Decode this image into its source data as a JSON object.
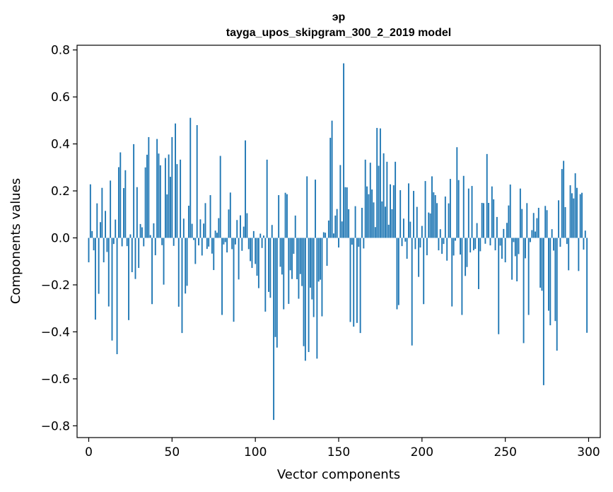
{
  "chart_data": {
    "type": "bar",
    "title": "эр",
    "subtitle": "tayga_upos_skipgram_300_2_2019 model",
    "xlabel": "Vector components",
    "ylabel": "Components values",
    "xlim": [
      -7,
      307
    ],
    "ylim": [
      -0.85,
      0.82
    ],
    "xticks": [
      0,
      50,
      100,
      150,
      200,
      250,
      300
    ],
    "xtick_labels": [
      "0",
      "50",
      "100",
      "150",
      "200",
      "250",
      "300"
    ],
    "yticks": [
      -0.8,
      -0.6,
      -0.4,
      -0.2,
      0.0,
      0.2,
      0.4,
      0.6,
      0.8
    ],
    "ytick_labels": [
      "−0.8",
      "−0.6",
      "−0.4",
      "−0.2",
      "0.0",
      "0.2",
      "0.4",
      "0.6",
      "0.8"
    ],
    "bar_color": "#1f77b4",
    "values": [
      -0.104,
      0.228,
      0.029,
      -0.053,
      -0.348,
      0.147,
      -0.238,
      0.067,
      0.213,
      -0.104,
      0.115,
      -0.06,
      -0.292,
      0.244,
      -0.437,
      -0.026,
      0.078,
      -0.495,
      0.301,
      0.364,
      -0.036,
      0.212,
      0.288,
      -0.035,
      -0.35,
      0.015,
      -0.146,
      0.399,
      -0.175,
      0.216,
      -0.128,
      0.059,
      0.045,
      -0.036,
      0.3,
      0.354,
      0.429,
      0.012,
      -0.282,
      0.062,
      -0.074,
      0.421,
      0.359,
      0.309,
      -0.031,
      -0.199,
      0.34,
      0.185,
      0.355,
      0.26,
      0.429,
      -0.034,
      0.487,
      0.314,
      -0.293,
      0.333,
      -0.405,
      0.082,
      -0.237,
      -0.204,
      0.137,
      0.511,
      0.06,
      -0.009,
      -0.111,
      0.48,
      -0.032,
      0.079,
      -0.075,
      0.061,
      0.148,
      -0.047,
      -0.037,
      0.182,
      -0.067,
      -0.137,
      0.031,
      0.022,
      0.084,
      0.349,
      -0.328,
      -0.028,
      -0.018,
      -0.062,
      0.121,
      0.193,
      -0.048,
      -0.357,
      -0.028,
      0.076,
      -0.177,
      0.096,
      -0.055,
      0.048,
      0.415,
      0.105,
      -0.048,
      -0.099,
      -0.128,
      0.029,
      -0.111,
      -0.161,
      -0.214,
      0.018,
      -0.043,
      0.01,
      -0.314,
      0.333,
      -0.23,
      -0.255,
      0.055,
      -0.775,
      -0.422,
      -0.467,
      0.182,
      -0.123,
      -0.156,
      -0.304,
      0.192,
      0.186,
      -0.281,
      -0.138,
      -0.175,
      -0.068,
      0.095,
      -0.176,
      -0.259,
      -0.154,
      -0.205,
      -0.461,
      -0.523,
      0.262,
      -0.486,
      -0.212,
      -0.262,
      -0.337,
      0.248,
      -0.514,
      -0.186,
      -0.178,
      -0.334,
      0.024,
      0.022,
      -0.119,
      0.074,
      0.426,
      0.499,
      0.019,
      0.095,
      0.123,
      -0.041,
      0.31,
      0.07,
      0.743,
      0.216,
      0.215,
      0.122,
      -0.358,
      -0.029,
      -0.378,
      0.135,
      -0.362,
      -0.038,
      -0.405,
      0.128,
      -0.045,
      0.333,
      0.219,
      0.186,
      0.32,
      0.206,
      0.151,
      0.046,
      0.468,
      0.307,
      0.466,
      0.155,
      0.36,
      0.133,
      0.324,
      0.056,
      0.228,
      0.122,
      0.224,
      0.324,
      -0.304,
      -0.286,
      0.203,
      -0.035,
      0.082,
      -0.016,
      -0.089,
      0.232,
      0.069,
      -0.458,
      0.2,
      -0.048,
      0.132,
      -0.166,
      -0.041,
      0.051,
      -0.282,
      0.242,
      -0.074,
      0.108,
      0.104,
      0.262,
      0.194,
      0.182,
      0.148,
      -0.053,
      0.037,
      -0.068,
      -0.026,
      0.176,
      -0.097,
      0.147,
      0.251,
      -0.292,
      -0.075,
      -0.012,
      0.386,
      0.246,
      -0.071,
      -0.328,
      0.264,
      -0.162,
      -0.124,
      0.21,
      -0.062,
      0.221,
      -0.053,
      -0.047,
      0.063,
      -0.218,
      -0.057,
      0.149,
      0.148,
      -0.025,
      0.357,
      0.149,
      -0.032,
      0.219,
      0.164,
      -0.053,
      0.089,
      -0.41,
      -0.033,
      -0.089,
      0.038,
      -0.104,
      0.064,
      0.138,
      0.227,
      -0.178,
      -0.018,
      -0.078,
      -0.185,
      -0.069,
      0.21,
      0.123,
      -0.448,
      -0.087,
      0.148,
      -0.328,
      -0.018,
      0.033,
      0.106,
      0.027,
      0.084,
      0.128,
      -0.212,
      -0.225,
      -0.627,
      0.136,
      0.118,
      -0.31,
      -0.372,
      0.037,
      -0.054,
      -0.354,
      -0.48,
      0.16,
      -0.038,
      0.293,
      0.328,
      0.131,
      -0.026,
      -0.138,
      0.224,
      0.19,
      0.168,
      0.275,
      0.213,
      -0.141,
      0.186,
      0.192,
      -0.05,
      0.031,
      -0.404
    ]
  }
}
